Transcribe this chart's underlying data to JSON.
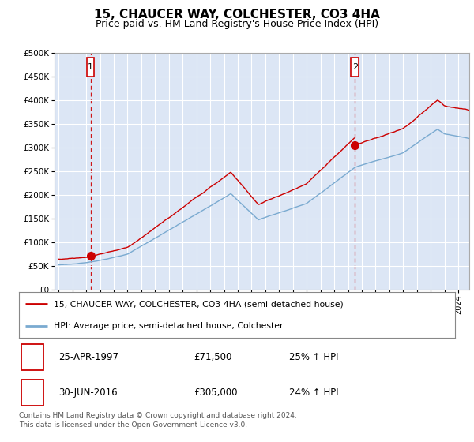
{
  "title": "15, CHAUCER WAY, COLCHESTER, CO3 4HA",
  "subtitle": "Price paid vs. HM Land Registry's House Price Index (HPI)",
  "bg_color": "#dce6f5",
  "sale1_date": 1997.32,
  "sale1_price": 71500,
  "sale2_date": 2016.5,
  "sale2_price": 305000,
  "red_line_color": "#cc0000",
  "blue_line_color": "#7aaad0",
  "dashed_line_color": "#cc0000",
  "legend_label_red": "15, CHAUCER WAY, COLCHESTER, CO3 4HA (semi-detached house)",
  "legend_label_blue": "HPI: Average price, semi-detached house, Colchester",
  "annotation1_date": "25-APR-1997",
  "annotation1_price": "£71,500",
  "annotation1_hpi": "25% ↑ HPI",
  "annotation2_date": "30-JUN-2016",
  "annotation2_price": "£305,000",
  "annotation2_hpi": "24% ↑ HPI",
  "footnote": "Contains HM Land Registry data © Crown copyright and database right 2024.\nThis data is licensed under the Open Government Licence v3.0.",
  "ylim": [
    0,
    500000
  ],
  "yticks": [
    0,
    50000,
    100000,
    150000,
    200000,
    250000,
    300000,
    350000,
    400000,
    450000,
    500000
  ],
  "xlim_start": 1994.7,
  "xlim_end": 2024.8
}
